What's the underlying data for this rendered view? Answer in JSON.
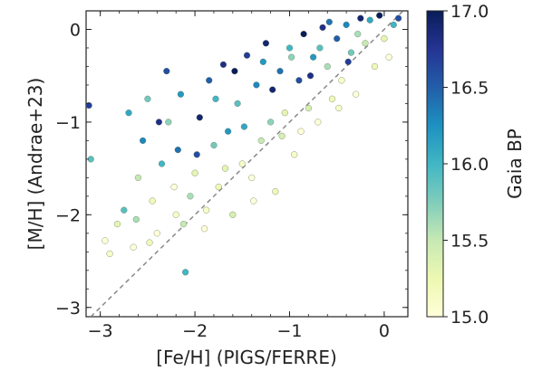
{
  "chart_data": {
    "type": "scatter",
    "xlabel": "[Fe/H] (PIGS/FERRE)",
    "ylabel": "[M/H] (Andrae+23)",
    "colorbar_label": "Gaia BP",
    "xlim": [
      -3.15,
      0.25
    ],
    "ylim": [
      -3.1,
      0.2
    ],
    "xticks": [
      -3,
      -2,
      -1,
      0
    ],
    "yticks": [
      -3,
      -2,
      -1,
      0
    ],
    "x_tick_labels": [
      "−3",
      "−2",
      "−1",
      "0"
    ],
    "y_tick_labels": [
      "−3",
      "−2",
      "−1",
      "0"
    ],
    "color_range": [
      15.0,
      17.0
    ],
    "colorbar_ticks": [
      15.0,
      15.5,
      16.0,
      16.5,
      17.0
    ],
    "colorbar_tick_labels": [
      "15.0",
      "15.5",
      "16.0",
      "16.5",
      "17.0"
    ],
    "colormap": [
      "#ffffd9",
      "#edf8b1",
      "#c7e9b4",
      "#7fcdbb",
      "#41b6c4",
      "#1d91c0",
      "#225ea8",
      "#253494",
      "#081d58"
    ],
    "one_to_one_line": true,
    "one_to_one_color": "#888888",
    "grid": false,
    "points": [
      [
        -3.1,
        -1.4,
        15.9
      ],
      [
        -3.12,
        -0.82,
        16.7
      ],
      [
        -2.95,
        -2.28,
        15.0
      ],
      [
        -2.9,
        -2.42,
        15.1
      ],
      [
        -2.82,
        -2.1,
        15.3
      ],
      [
        -2.75,
        -1.95,
        15.9
      ],
      [
        -2.7,
        -0.9,
        16.1
      ],
      [
        -2.65,
        -2.35,
        15.0
      ],
      [
        -2.6,
        -1.6,
        15.5
      ],
      [
        -2.55,
        -1.2,
        16.3
      ],
      [
        -2.5,
        -0.75,
        15.8
      ],
      [
        -2.45,
        -1.85,
        15.2
      ],
      [
        -2.4,
        -2.2,
        15.0
      ],
      [
        -2.35,
        -1.45,
        16.0
      ],
      [
        -2.3,
        -0.45,
        16.6
      ],
      [
        -2.28,
        -1.0,
        15.7
      ],
      [
        -2.2,
        -2.0,
        15.1
      ],
      [
        -2.18,
        -1.3,
        16.4
      ],
      [
        -2.15,
        -0.7,
        16.2
      ],
      [
        -2.1,
        -2.62,
        16.0
      ],
      [
        -2.05,
        -1.8,
        15.6
      ],
      [
        -2.0,
        -1.55,
        15.3
      ],
      [
        -1.95,
        -0.95,
        16.9
      ],
      [
        -1.9,
        -2.15,
        15.0
      ],
      [
        -1.85,
        -0.55,
        16.5
      ],
      [
        -1.8,
        -1.25,
        15.8
      ],
      [
        -1.75,
        -1.7,
        15.2
      ],
      [
        -1.7,
        -0.38,
        16.8
      ],
      [
        -1.65,
        -1.1,
        16.2
      ],
      [
        -1.6,
        -2.0,
        15.4
      ],
      [
        -1.55,
        -0.8,
        15.9
      ],
      [
        -1.5,
        -1.45,
        15.1
      ],
      [
        -1.45,
        -0.28,
        16.7
      ],
      [
        -1.4,
        -1.6,
        15.0
      ],
      [
        -1.35,
        -0.6,
        16.3
      ],
      [
        -1.3,
        -1.2,
        15.5
      ],
      [
        -1.25,
        -0.15,
        16.9
      ],
      [
        -1.2,
        -1.0,
        15.7
      ],
      [
        -1.15,
        -1.75,
        15.2
      ],
      [
        -1.1,
        -0.45,
        16.4
      ],
      [
        -1.05,
        -0.9,
        15.3
      ],
      [
        -1.0,
        -0.2,
        16.0
      ],
      [
        -0.95,
        -1.35,
        15.1
      ],
      [
        -0.9,
        -0.55,
        16.6
      ],
      [
        -0.85,
        -0.05,
        17.0
      ],
      [
        -0.8,
        -0.85,
        15.4
      ],
      [
        -0.75,
        -0.3,
        16.2
      ],
      [
        -0.7,
        -1.0,
        15.0
      ],
      [
        -0.65,
        0.02,
        16.8
      ],
      [
        -0.6,
        -0.4,
        15.6
      ],
      [
        -0.55,
        -0.75,
        15.2
      ],
      [
        -0.5,
        -0.1,
        16.5
      ],
      [
        -0.45,
        -0.55,
        15.1
      ],
      [
        -0.4,
        0.05,
        16.3
      ],
      [
        -0.35,
        -0.25,
        15.8
      ],
      [
        -0.3,
        -0.7,
        15.0
      ],
      [
        -0.25,
        0.12,
        16.9
      ],
      [
        -0.2,
        -0.15,
        15.5
      ],
      [
        -0.15,
        0.1,
        16.1
      ],
      [
        -0.1,
        -0.4,
        15.2
      ],
      [
        -0.05,
        0.15,
        17.0
      ],
      [
        0.0,
        -0.1,
        15.3
      ],
      [
        0.05,
        -0.3,
        15.0
      ],
      [
        0.1,
        0.05,
        16.0
      ],
      [
        0.15,
        0.12,
        16.6
      ],
      [
        -2.62,
        -2.05,
        15.6
      ],
      [
        -2.48,
        -2.3,
        15.2
      ],
      [
        -2.38,
        -1.0,
        16.8
      ],
      [
        -2.22,
        -1.7,
        15.0
      ],
      [
        -2.12,
        -2.1,
        15.5
      ],
      [
        -1.98,
        -1.35,
        16.6
      ],
      [
        -1.88,
        -1.95,
        15.1
      ],
      [
        -1.78,
        -0.75,
        16.0
      ],
      [
        -1.68,
        -1.5,
        15.3
      ],
      [
        -1.58,
        -0.45,
        17.0
      ],
      [
        -1.48,
        -1.05,
        16.1
      ],
      [
        -1.38,
        -1.85,
        15.0
      ],
      [
        -1.28,
        -0.35,
        16.2
      ],
      [
        -1.18,
        -0.65,
        16.9
      ],
      [
        -1.08,
        -1.15,
        15.4
      ],
      [
        -0.98,
        -0.3,
        15.7
      ],
      [
        -0.88,
        -1.1,
        15.0
      ],
      [
        -0.78,
        -0.5,
        16.8
      ],
      [
        -0.68,
        -0.2,
        15.9
      ],
      [
        -0.58,
        0.08,
        16.4
      ],
      [
        -0.48,
        -0.85,
        15.1
      ],
      [
        -0.38,
        -0.35,
        16.7
      ],
      [
        -0.28,
        -0.05,
        15.6
      ]
    ]
  }
}
